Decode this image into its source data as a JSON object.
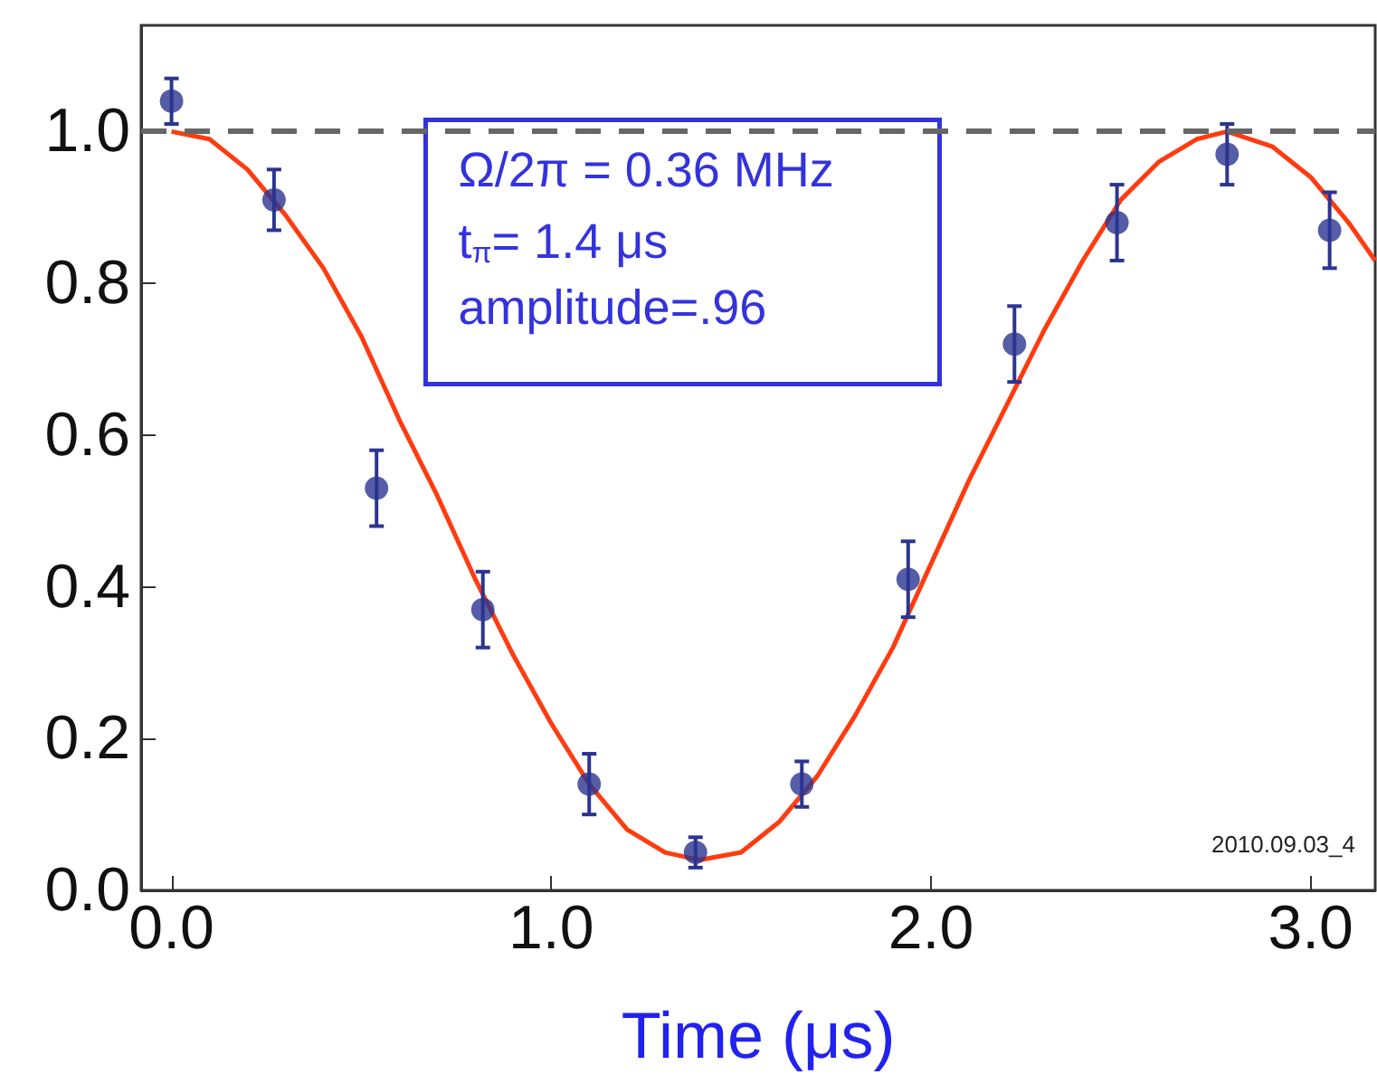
{
  "chart_data": {
    "type": "scatter",
    "xlabel": "Time (μs)",
    "xlim": [
      -0.08,
      3.17
    ],
    "ylim": [
      0,
      1.14
    ],
    "xticks": [
      {
        "value": 0,
        "label": "0.0"
      },
      {
        "value": 1,
        "label": "1.0"
      },
      {
        "value": 2,
        "label": "2.0"
      },
      {
        "value": 3,
        "label": "3.0"
      }
    ],
    "yticks": [
      {
        "value": 0,
        "label": "0.0"
      },
      {
        "value": 0.2,
        "label": "0.2"
      },
      {
        "value": 0.4,
        "label": "0.4"
      },
      {
        "value": 0.6,
        "label": "0.6"
      },
      {
        "value": 0.8,
        "label": "0.8"
      },
      {
        "value": 1,
        "label": "1.0"
      }
    ],
    "grid": false,
    "marker": "circle",
    "series": [
      {
        "color": "#2b3590",
        "x": [
          0,
          0.27,
          0.54,
          0.82,
          1.1,
          1.38,
          1.66,
          1.94,
          2.22,
          2.49,
          2.78,
          3.05
        ],
        "values": [
          1.04,
          0.91,
          0.53,
          0.37,
          0.14,
          0.05,
          0.14,
          0.41,
          0.72,
          0.88,
          0.97,
          0.87
        ],
        "errors": [
          0.03,
          0.04,
          0.05,
          0.05,
          0.04,
          0.02,
          0.03,
          0.05,
          0.05,
          0.05,
          0.04,
          0.05
        ]
      },
      {
        "type": "line",
        "color": "#ff3b10",
        "marker": "none",
        "x": [
          0,
          0.1,
          0.2,
          0.3,
          0.4,
          0.5,
          0.6,
          0.7,
          0.8,
          0.9,
          1.0,
          1.1,
          1.2,
          1.3,
          1.39,
          1.5,
          1.6,
          1.7,
          1.8,
          1.9,
          2.0,
          2.1,
          2.2,
          2.3,
          2.4,
          2.5,
          2.6,
          2.7,
          2.78,
          2.9,
          3.0,
          3.1,
          3.17
        ],
        "values": [
          1.0,
          0.99,
          0.95,
          0.89,
          0.82,
          0.73,
          0.62,
          0.52,
          0.41,
          0.31,
          0.22,
          0.14,
          0.08,
          0.05,
          0.04,
          0.05,
          0.09,
          0.15,
          0.23,
          0.32,
          0.43,
          0.54,
          0.64,
          0.74,
          0.83,
          0.91,
          0.96,
          0.99,
          1.0,
          0.98,
          0.94,
          0.88,
          0.83
        ]
      }
    ],
    "ref_lines": [
      {
        "axis": "y",
        "value": 1,
        "color": "#666666",
        "line_style": "dashed"
      }
    ],
    "annotations": [
      "Ω/2π = 0.36 MHz",
      "t$_{π}$= 1.4 μs",
      "amplitude=.96",
      "2010.09.03_4"
    ]
  }
}
